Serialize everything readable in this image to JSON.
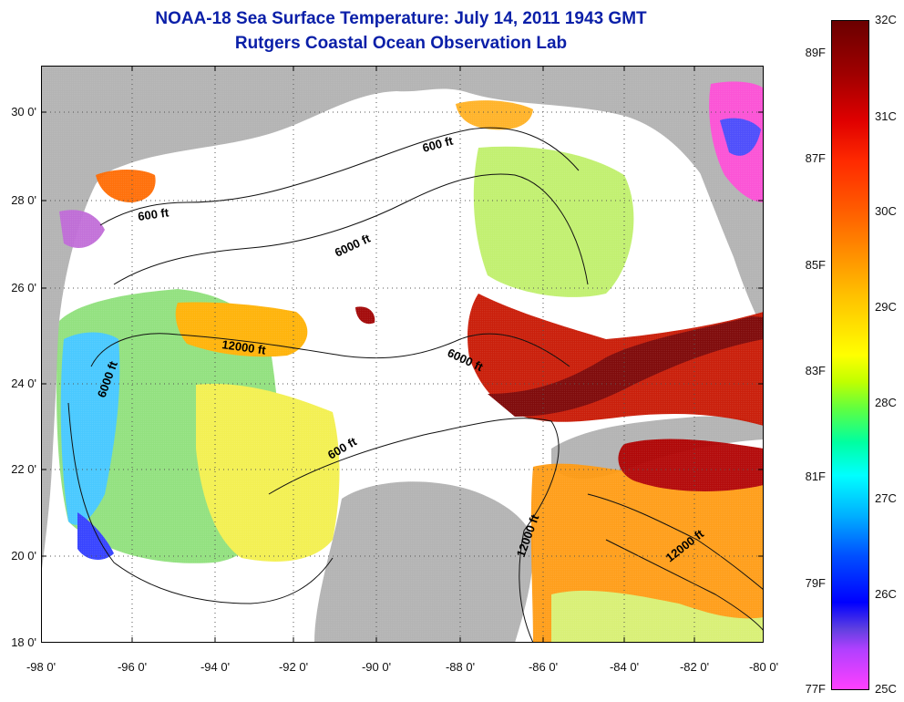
{
  "header": {
    "title": "NOAA-18 Sea Surface Temperature:  July 14, 2011 1943 GMT",
    "subtitle": "Rutgers Coastal Ocean Observation Lab"
  },
  "map": {
    "lat_ticks": [
      "30 0'",
      "28 0'",
      "26 0'",
      "24 0'",
      "22 0'",
      "20 0'",
      "18 0'"
    ],
    "lon_ticks": [
      "-98 0'",
      "-96 0'",
      "-94 0'",
      "-92 0'",
      "-90 0'",
      "-88 0'",
      "-86 0'",
      "-84 0'",
      "-82 0'",
      "-80 0'"
    ],
    "contour_labels": [
      "600 ft",
      "600 ft",
      "6000 ft",
      "12000 ft",
      "6000 ft",
      "6000 ft",
      "600 ft",
      "12000 ft",
      "12000 ft"
    ],
    "land_color": "#b4b4b4",
    "no_data_color": "#ffffff"
  },
  "colorbar": {
    "celsius_labels": [
      "32C",
      "31C",
      "30C",
      "29C",
      "28C",
      "27C",
      "26C",
      "25C"
    ],
    "fahrenheit_labels": [
      "89F",
      "87F",
      "85F",
      "83F",
      "81F",
      "79F",
      "77F"
    ],
    "top_color": "#6b0000",
    "bottom_color": "#ff40ff"
  }
}
